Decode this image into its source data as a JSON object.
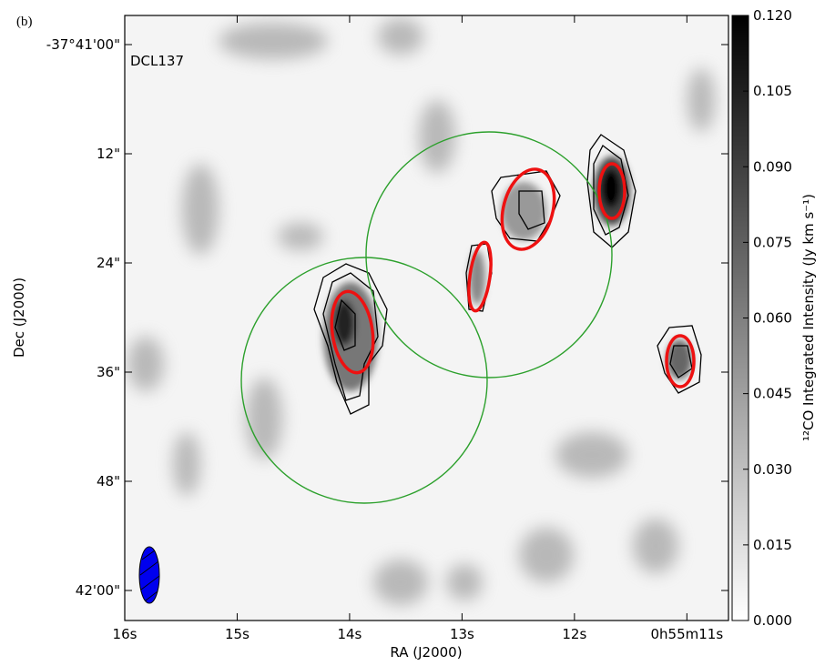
{
  "chart_data": {
    "type": "image",
    "panel_label": "(b)",
    "title": "DCL137",
    "xlabel": "RA (J2000)",
    "ylabel": "Dec (J2000)",
    "colorbar_label": "¹²CO Integrated Intensity (Jy km s⁻¹)",
    "xlim": [
      16,
      10.63
    ],
    "xticks": [
      {
        "value": 16,
        "label": "16s"
      },
      {
        "value": 15,
        "label": "15s"
      },
      {
        "value": 14,
        "label": "14s"
      },
      {
        "value": 13,
        "label": "13s"
      },
      {
        "value": 12,
        "label": "12s"
      },
      {
        "value": 11,
        "label": "0h55m11s"
      }
    ],
    "ylim": [
      63.3,
      -3.2
    ],
    "yticks": [
      {
        "value": 0,
        "label": "-37°41'00\""
      },
      {
        "value": 12,
        "label": "12\""
      },
      {
        "value": 24,
        "label": "24\""
      },
      {
        "value": 36,
        "label": "36\""
      },
      {
        "value": 48,
        "label": "48\""
      },
      {
        "value": 60,
        "label": "42'00\""
      }
    ],
    "clim": [
      0,
      0.12
    ],
    "cticks": [
      {
        "value": 0,
        "label": "0.000"
      },
      {
        "value": 0.015,
        "label": "0.015"
      },
      {
        "value": 0.03,
        "label": "0.030"
      },
      {
        "value": 0.045,
        "label": "0.045"
      },
      {
        "value": 0.06,
        "label": "0.060"
      },
      {
        "value": 0.075,
        "label": "0.075"
      },
      {
        "value": 0.09,
        "label": "0.090"
      },
      {
        "value": 0.105,
        "label": "0.105"
      },
      {
        "value": 0.12,
        "label": "0.120"
      }
    ],
    "colormap": [
      "#ffffff",
      "#000000"
    ]
  }
}
